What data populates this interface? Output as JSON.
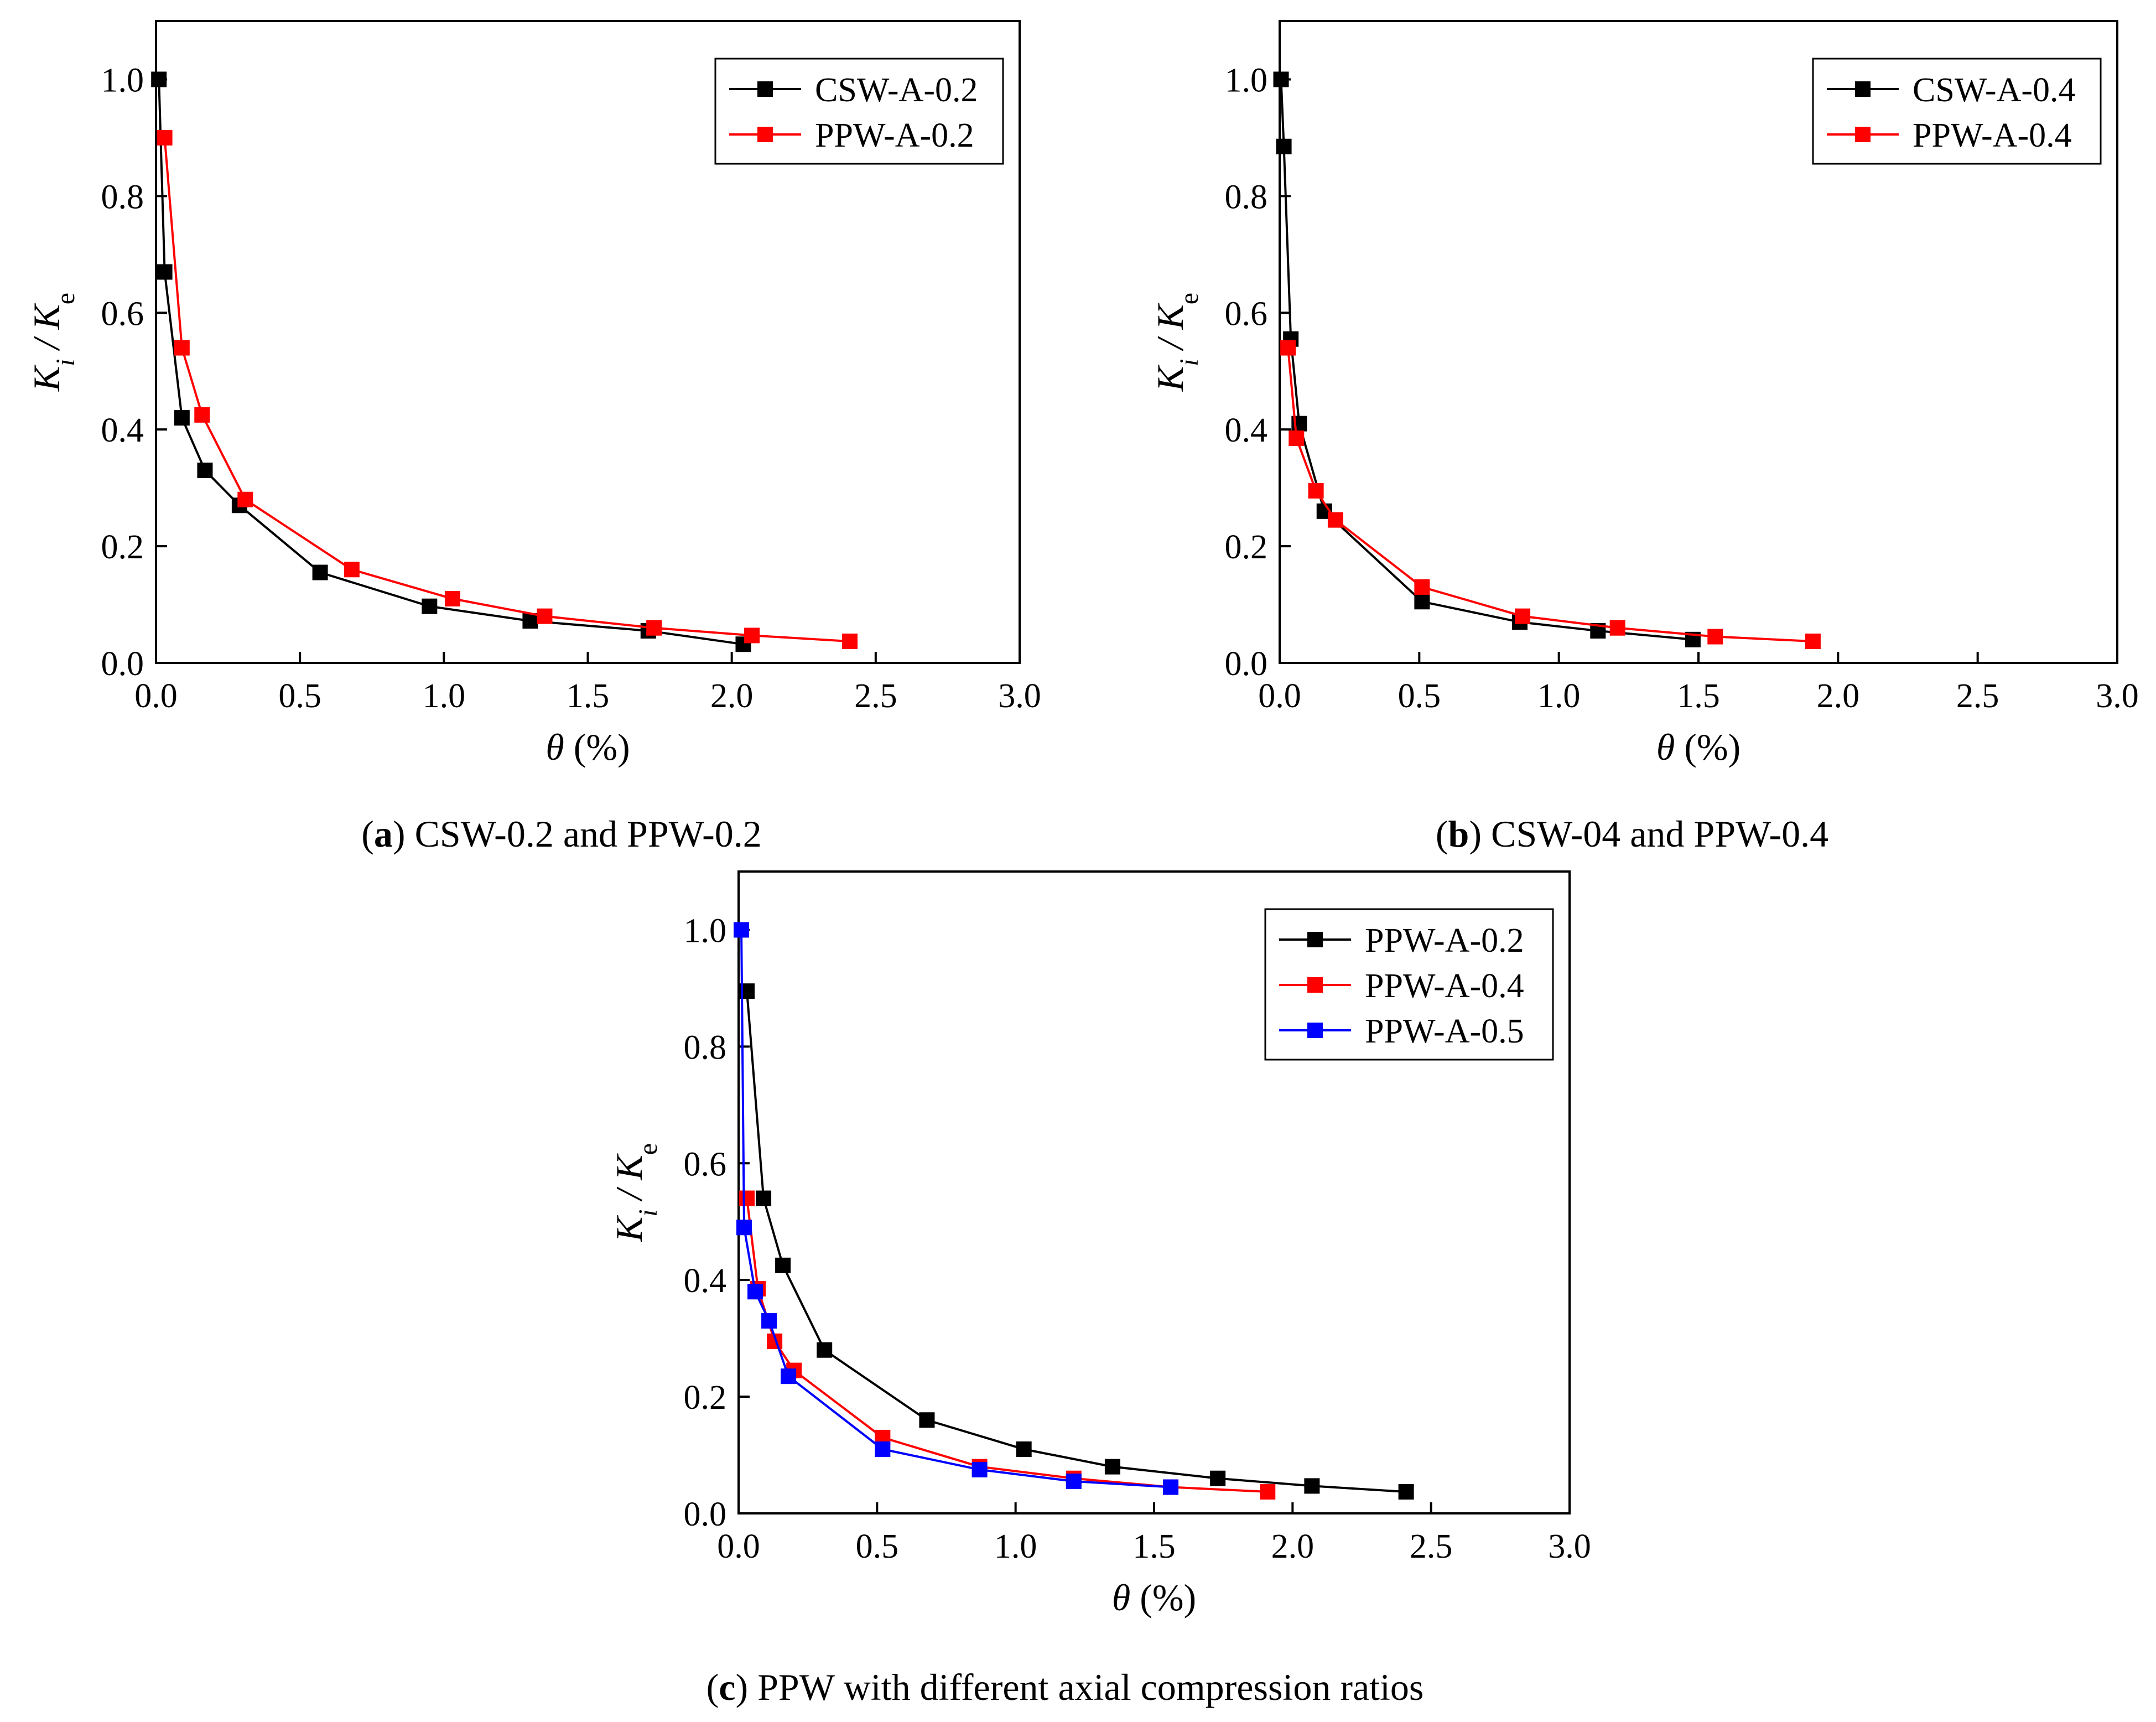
{
  "chart_data": [
    {
      "id": "a",
      "type": "line",
      "caption_letter": "a",
      "caption_text": " CSW-0.2 and PPW-0.2",
      "xlabel_symbol": "θ",
      "xlabel_unit": " (%)",
      "ylabel_k": "K",
      "ylabel_sub1": "i",
      "ylabel_sep": " / K",
      "ylabel_sub2": "e",
      "xlim": [
        0,
        3.0
      ],
      "ylim": [
        0,
        1.1
      ],
      "xticks": [
        0.0,
        0.5,
        1.0,
        1.5,
        2.0,
        2.5,
        3.0
      ],
      "xtick_labels": [
        "0.0",
        "0.5",
        "1.0",
        "1.5",
        "2.0",
        "2.5",
        "3.0"
      ],
      "yticks": [
        0.0,
        0.2,
        0.4,
        0.6,
        0.8,
        1.0
      ],
      "ytick_labels": [
        "0.0",
        "0.2",
        "0.4",
        "0.6",
        "0.8",
        "1.0"
      ],
      "legend_position": "top-right",
      "series": [
        {
          "name": "CSW-A-0.2",
          "color": "#000000",
          "x": [
            0.01,
            0.03,
            0.09,
            0.17,
            0.29,
            0.57,
            0.95,
            1.3,
            1.71,
            2.04
          ],
          "y": [
            1.0,
            0.67,
            0.42,
            0.33,
            0.27,
            0.155,
            0.097,
            0.072,
            0.055,
            0.032
          ]
        },
        {
          "name": "PPW-A-0.2",
          "color": "#ff0000",
          "x": [
            0.03,
            0.09,
            0.16,
            0.31,
            0.68,
            1.03,
            1.35,
            1.73,
            2.07,
            2.41
          ],
          "y": [
            0.9,
            0.54,
            0.425,
            0.28,
            0.16,
            0.11,
            0.08,
            0.06,
            0.047,
            0.037
          ]
        }
      ]
    },
    {
      "id": "b",
      "type": "line",
      "caption_letter": "b",
      "caption_text": " CSW-04 and PPW-0.4",
      "xlabel_symbol": "θ",
      "xlabel_unit": " (%)",
      "ylabel_k": "K",
      "ylabel_sub1": "i",
      "ylabel_sep": " / K",
      "ylabel_sub2": "e",
      "xlim": [
        0,
        3.0
      ],
      "ylim": [
        0,
        1.1
      ],
      "xticks": [
        0.0,
        0.5,
        1.0,
        1.5,
        2.0,
        2.5,
        3.0
      ],
      "xtick_labels": [
        "0.0",
        "0.5",
        "1.0",
        "1.5",
        "2.0",
        "2.5",
        "3.0"
      ],
      "yticks": [
        0.0,
        0.2,
        0.4,
        0.6,
        0.8,
        1.0
      ],
      "ytick_labels": [
        "0.0",
        "0.2",
        "0.4",
        "0.6",
        "0.8",
        "1.0"
      ],
      "legend_position": "top-right",
      "series": [
        {
          "name": "CSW-A-0.4",
          "color": "#000000",
          "x": [
            0.005,
            0.015,
            0.04,
            0.07,
            0.16,
            0.51,
            0.86,
            1.14,
            1.48
          ],
          "y": [
            1.0,
            0.885,
            0.555,
            0.41,
            0.26,
            0.105,
            0.07,
            0.055,
            0.04
          ]
        },
        {
          "name": "PPW-A-0.4",
          "color": "#ff0000",
          "x": [
            0.03,
            0.06,
            0.13,
            0.2,
            0.51,
            0.87,
            1.21,
            1.56,
            1.91
          ],
          "y": [
            0.54,
            0.385,
            0.295,
            0.245,
            0.13,
            0.08,
            0.06,
            0.045,
            0.037
          ]
        }
      ]
    },
    {
      "id": "c",
      "type": "line",
      "caption_letter": "c",
      "caption_text": " PPW with different axial compression ratios",
      "xlabel_symbol": "θ",
      "xlabel_unit": " (%)",
      "ylabel_k": "K",
      "ylabel_sub1": "i",
      "ylabel_sep": " / K",
      "ylabel_sub2": "e",
      "xlim": [
        0,
        3.0
      ],
      "ylim": [
        0,
        1.1
      ],
      "xticks": [
        0.0,
        0.5,
        1.0,
        1.5,
        2.0,
        2.5,
        3.0
      ],
      "xtick_labels": [
        "0.0",
        "0.5",
        "1.0",
        "1.5",
        "2.0",
        "2.5",
        "3.0"
      ],
      "yticks": [
        0.0,
        0.2,
        0.4,
        0.6,
        0.8,
        1.0
      ],
      "ytick_labels": [
        "0.0",
        "0.2",
        "0.4",
        "0.6",
        "0.8",
        "1.0"
      ],
      "legend_position": "top-right",
      "series": [
        {
          "name": "PPW-A-0.2",
          "color": "#000000",
          "x": [
            0.03,
            0.09,
            0.16,
            0.31,
            0.68,
            1.03,
            1.35,
            1.73,
            2.07,
            2.41
          ],
          "y": [
            0.895,
            0.54,
            0.425,
            0.28,
            0.16,
            0.11,
            0.08,
            0.06,
            0.047,
            0.037
          ]
        },
        {
          "name": "PPW-A-0.4",
          "color": "#ff0000",
          "x": [
            0.03,
            0.07,
            0.13,
            0.2,
            0.52,
            0.87,
            1.21,
            1.56,
            1.91
          ],
          "y": [
            0.54,
            0.385,
            0.295,
            0.245,
            0.13,
            0.08,
            0.06,
            0.045,
            0.037
          ]
        },
        {
          "name": "PPW-A-0.5",
          "color": "#0000ff",
          "x": [
            0.01,
            0.02,
            0.06,
            0.11,
            0.18,
            0.52,
            0.87,
            1.21,
            1.56
          ],
          "y": [
            1.0,
            0.49,
            0.38,
            0.33,
            0.235,
            0.11,
            0.075,
            0.055,
            0.045
          ]
        }
      ]
    }
  ]
}
